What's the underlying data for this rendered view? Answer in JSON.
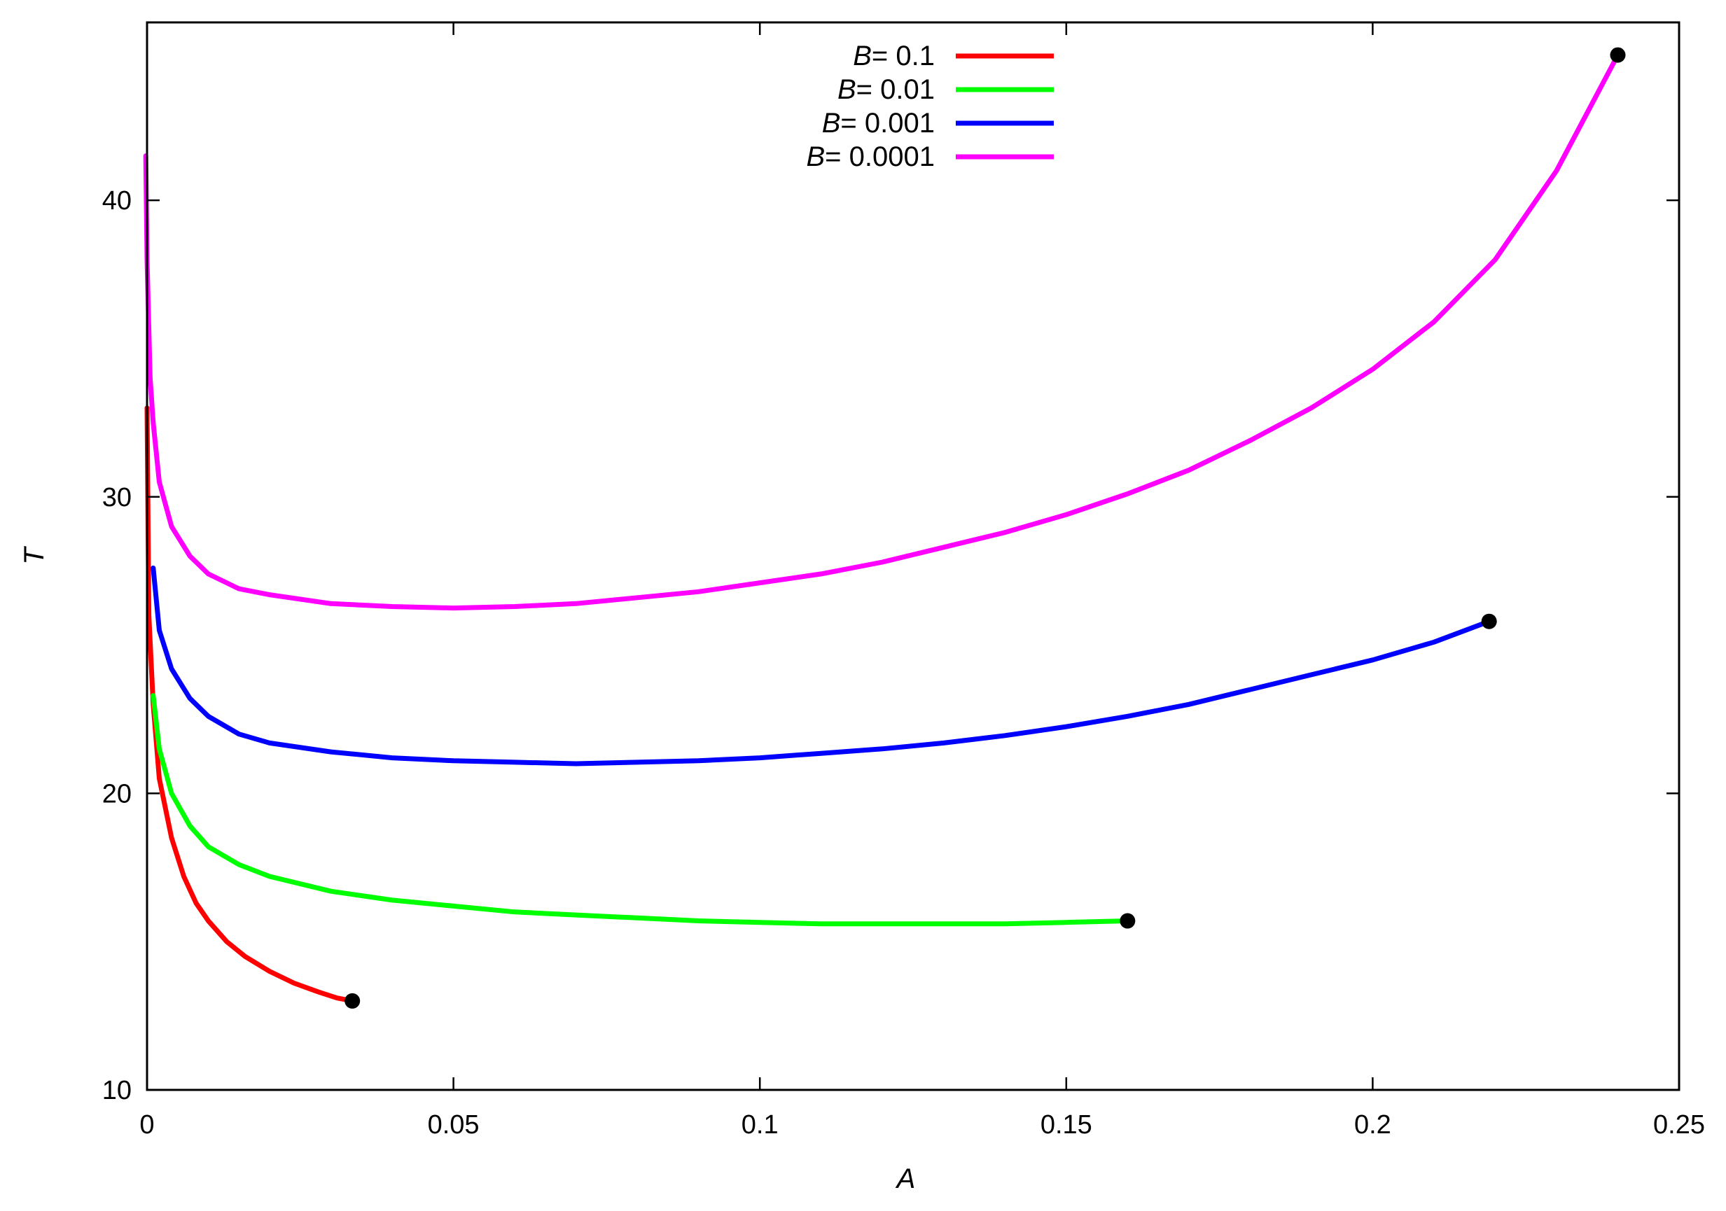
{
  "chart_data": {
    "type": "line",
    "xlabel": "A",
    "ylabel": "T",
    "xlim": [
      0,
      0.25
    ],
    "ylim": [
      10,
      46
    ],
    "xticks": [
      {
        "value": 0,
        "label": "0"
      },
      {
        "value": 0.05,
        "label": "0.05"
      },
      {
        "value": 0.1,
        "label": "0.1"
      },
      {
        "value": 0.15,
        "label": "0.15"
      },
      {
        "value": 0.2,
        "label": "0.2"
      },
      {
        "value": 0.25,
        "label": "0.25"
      }
    ],
    "yticks": [
      {
        "value": 10,
        "label": "10"
      },
      {
        "value": 20,
        "label": "20"
      },
      {
        "value": 30,
        "label": "30"
      },
      {
        "value": 40,
        "label": "40"
      }
    ],
    "grid": false,
    "legend_position": "top-center",
    "series": [
      {
        "var": "B",
        "value_text": "= 0.1",
        "color": "#ff0000",
        "x": [
          0,
          0.0003,
          0.001,
          0.002,
          0.004,
          0.006,
          0.008,
          0.01,
          0.013,
          0.016,
          0.02,
          0.024,
          0.028,
          0.031,
          0.0335
        ],
        "y": [
          33,
          26,
          23,
          20.5,
          18.5,
          17.2,
          16.3,
          15.7,
          15.0,
          14.5,
          14.0,
          13.6,
          13.3,
          13.1,
          13.0
        ],
        "endpoint": [
          0.0335,
          13.0
        ]
      },
      {
        "var": "B",
        "value_text": "= 0.01",
        "color": "#00ff00",
        "x": [
          0.001,
          0.002,
          0.004,
          0.007,
          0.01,
          0.015,
          0.02,
          0.03,
          0.04,
          0.05,
          0.06,
          0.07,
          0.08,
          0.09,
          0.1,
          0.11,
          0.12,
          0.13,
          0.14,
          0.15,
          0.16
        ],
        "y": [
          23.3,
          21.5,
          20.0,
          18.9,
          18.2,
          17.6,
          17.2,
          16.7,
          16.4,
          16.2,
          16.0,
          15.9,
          15.8,
          15.7,
          15.65,
          15.6,
          15.6,
          15.6,
          15.6,
          15.65,
          15.7
        ],
        "endpoint": [
          0.16,
          15.7
        ]
      },
      {
        "var": "B",
        "value_text": "= 0.001",
        "color": "#0000ff",
        "x": [
          0.001,
          0.002,
          0.004,
          0.007,
          0.01,
          0.015,
          0.02,
          0.03,
          0.04,
          0.05,
          0.06,
          0.07,
          0.08,
          0.09,
          0.1,
          0.11,
          0.12,
          0.13,
          0.14,
          0.15,
          0.16,
          0.17,
          0.18,
          0.19,
          0.2,
          0.21,
          0.219
        ],
        "y": [
          27.6,
          25.5,
          24.2,
          23.2,
          22.6,
          22.0,
          21.7,
          21.4,
          21.2,
          21.1,
          21.05,
          21.0,
          21.05,
          21.1,
          21.2,
          21.35,
          21.5,
          21.7,
          21.95,
          22.25,
          22.6,
          23.0,
          23.5,
          24.0,
          24.5,
          25.1,
          25.8
        ],
        "endpoint": [
          0.219,
          25.8
        ]
      },
      {
        "var": "B",
        "value_text": "= 0.0001",
        "color": "#ff00ff",
        "x": [
          -0.0002,
          0,
          0.0005,
          0.001,
          0.002,
          0.004,
          0.007,
          0.01,
          0.015,
          0.02,
          0.03,
          0.04,
          0.05,
          0.06,
          0.07,
          0.08,
          0.09,
          0.1,
          0.11,
          0.12,
          0.13,
          0.14,
          0.15,
          0.16,
          0.17,
          0.18,
          0.19,
          0.2,
          0.21,
          0.22,
          0.23,
          0.24
        ],
        "y": [
          41.5,
          38,
          34,
          32.5,
          30.5,
          29.0,
          28.0,
          27.4,
          26.9,
          26.7,
          26.4,
          26.3,
          26.25,
          26.3,
          26.4,
          26.6,
          26.8,
          27.1,
          27.4,
          27.8,
          28.3,
          28.8,
          29.4,
          30.1,
          30.9,
          31.9,
          33.0,
          34.3,
          35.9,
          38.0,
          41.0,
          44.9
        ],
        "endpoint": [
          0.24,
          44.9
        ]
      }
    ]
  }
}
